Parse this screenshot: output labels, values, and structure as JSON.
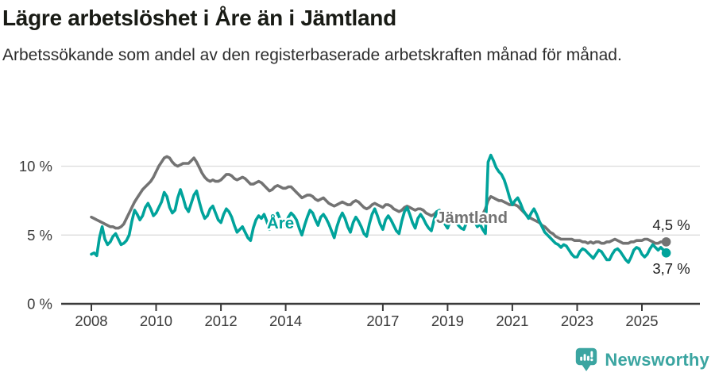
{
  "header": {
    "title": "Lägre arbetslöshet i Åre än i Jämtland",
    "subtitle": "Arbetssökande som andel av den registerbaserade arbetskraften månad för månad."
  },
  "chart_data": {
    "type": "line",
    "unit": "%",
    "x_start": {
      "year": 2008,
      "month": 1
    },
    "x_end": {
      "year": 2025,
      "month": 10
    },
    "x_ticks": [
      2008,
      2010,
      2012,
      2014,
      2017,
      2019,
      2021,
      2023,
      2025
    ],
    "y_ticks": [
      0,
      5,
      10
    ],
    "y_tick_labels": [
      "0 %",
      "5 %",
      "10 %"
    ],
    "ylim": [
      0,
      11.5
    ],
    "grid": "horizontal-at-5-and-10",
    "legend_position": "inline-labels-on-lines",
    "series": [
      {
        "id": "jamtland",
        "name": "Jämtland",
        "color": "#737373",
        "end_label": "4,5 %",
        "end_value": 4.5,
        "values": [
          6.3,
          6.2,
          6.1,
          6.0,
          5.9,
          5.8,
          5.7,
          5.6,
          5.6,
          5.5,
          5.5,
          5.6,
          5.8,
          6.2,
          6.6,
          7.0,
          7.4,
          7.7,
          8.0,
          8.3,
          8.5,
          8.7,
          8.9,
          9.2,
          9.6,
          10.0,
          10.3,
          10.6,
          10.7,
          10.6,
          10.3,
          10.1,
          10.0,
          10.1,
          10.2,
          10.2,
          10.2,
          10.4,
          10.6,
          10.3,
          9.9,
          9.5,
          9.2,
          9.0,
          8.9,
          9.0,
          8.9,
          8.9,
          9.0,
          9.2,
          9.4,
          9.4,
          9.3,
          9.1,
          9.0,
          9.1,
          9.2,
          9.1,
          8.9,
          8.7,
          8.7,
          8.8,
          8.9,
          8.8,
          8.6,
          8.4,
          8.2,
          8.3,
          8.5,
          8.6,
          8.5,
          8.4,
          8.4,
          8.5,
          8.5,
          8.3,
          8.1,
          7.9,
          7.7,
          7.8,
          7.9,
          7.9,
          7.8,
          7.6,
          7.5,
          7.6,
          7.7,
          7.5,
          7.3,
          7.2,
          7.1,
          7.2,
          7.3,
          7.4,
          7.3,
          7.2,
          7.2,
          7.4,
          7.5,
          7.4,
          7.2,
          7.0,
          6.9,
          7.0,
          7.2,
          7.3,
          7.2,
          7.1,
          7.0,
          7.2,
          7.2,
          7.1,
          6.9,
          6.8,
          6.7,
          6.8,
          7.0,
          7.1,
          7.0,
          6.9,
          6.8,
          6.9,
          6.9,
          6.8,
          6.6,
          6.5,
          6.4,
          6.5,
          6.7,
          6.7,
          6.6,
          6.5,
          6.4,
          6.5,
          6.5,
          6.4,
          6.3,
          6.3,
          6.2,
          6.3,
          6.4,
          6.5,
          6.5,
          6.4,
          6.5,
          6.5,
          6.9,
          7.5,
          7.8,
          7.7,
          7.6,
          7.5,
          7.5,
          7.4,
          7.3,
          7.2,
          7.2,
          7.2,
          7.1,
          6.9,
          6.7,
          6.5,
          6.3,
          6.2,
          6.1,
          6.0,
          5.9,
          5.7,
          5.6,
          5.4,
          5.2,
          5.1,
          4.9,
          4.8,
          4.7,
          4.7,
          4.7,
          4.7,
          4.7,
          4.6,
          4.6,
          4.6,
          4.5,
          4.5,
          4.4,
          4.5,
          4.4,
          4.5,
          4.5,
          4.4,
          4.4,
          4.5,
          4.5,
          4.6,
          4.7,
          4.6,
          4.5,
          4.4,
          4.4,
          4.4,
          4.5,
          4.5,
          4.6,
          4.6,
          4.6,
          4.7,
          4.7,
          4.6,
          4.5,
          4.4,
          4.4,
          4.5,
          4.5,
          4.5
        ]
      },
      {
        "id": "are",
        "name": "Åre",
        "color": "#00a39b",
        "end_label": "3,7 %",
        "end_value": 3.7,
        "values": [
          3.6,
          3.7,
          3.5,
          4.8,
          5.6,
          4.7,
          4.3,
          4.5,
          4.9,
          5.1,
          4.7,
          4.3,
          4.4,
          4.6,
          5.0,
          6.0,
          6.8,
          6.5,
          6.1,
          6.4,
          7.0,
          7.3,
          6.9,
          6.4,
          6.6,
          7.0,
          7.4,
          8.1,
          7.8,
          7.0,
          6.6,
          6.8,
          7.7,
          8.3,
          7.7,
          7.0,
          6.7,
          7.3,
          7.9,
          8.2,
          7.4,
          6.7,
          6.2,
          6.4,
          6.9,
          7.1,
          6.6,
          6.1,
          5.9,
          6.5,
          6.9,
          6.7,
          6.3,
          5.7,
          5.2,
          5.4,
          5.6,
          5.2,
          4.8,
          4.6,
          5.5,
          6.1,
          6.4,
          6.2,
          6.5,
          6.0,
          5.4,
          5.8,
          6.4,
          6.6,
          6.1,
          5.6,
          5.8,
          6.3,
          6.6,
          6.4,
          6.1,
          5.5,
          5.0,
          5.7,
          6.3,
          6.8,
          6.6,
          6.1,
          5.7,
          6.3,
          6.5,
          6.2,
          5.8,
          5.3,
          4.8,
          5.6,
          6.2,
          6.6,
          6.2,
          5.6,
          5.2,
          5.9,
          6.3,
          6.0,
          5.6,
          5.1,
          4.9,
          5.8,
          6.5,
          6.9,
          6.4,
          5.8,
          5.4,
          6.1,
          6.4,
          6.1,
          5.7,
          5.3,
          5.1,
          6.0,
          6.7,
          7.0,
          6.5,
          5.9,
          5.5,
          6.2,
          6.5,
          6.2,
          5.8,
          5.5,
          5.3,
          6.1,
          6.7,
          6.8,
          6.3,
          5.8,
          5.5,
          6.0,
          6.2,
          6.0,
          5.7,
          5.5,
          5.4,
          5.9,
          6.2,
          6.3,
          6.0,
          5.6,
          5.8,
          5.4,
          5.1,
          10.3,
          10.8,
          10.4,
          9.9,
          9.6,
          9.4,
          9.0,
          8.4,
          7.7,
          7.2,
          7.5,
          7.7,
          7.3,
          6.8,
          6.5,
          6.2,
          6.6,
          6.9,
          6.5,
          6.0,
          5.6,
          5.2,
          5.0,
          4.8,
          4.6,
          4.4,
          4.3,
          4.1,
          4.3,
          4.2,
          3.9,
          3.6,
          3.4,
          3.4,
          3.8,
          4.0,
          3.9,
          3.7,
          3.5,
          3.3,
          3.6,
          3.9,
          3.8,
          3.5,
          3.2,
          3.2,
          3.6,
          3.9,
          4.0,
          3.8,
          3.5,
          3.2,
          3.0,
          3.4,
          3.9,
          4.1,
          4.0,
          3.6,
          3.4,
          3.6,
          4.0,
          4.3,
          4.1,
          3.9,
          4.1,
          3.9,
          3.7
        ]
      }
    ]
  },
  "footer": {
    "brand": "Newsworthy",
    "logo_color": "#3ba5a1",
    "logo_icon": "bar-chart-speech-bubble"
  }
}
